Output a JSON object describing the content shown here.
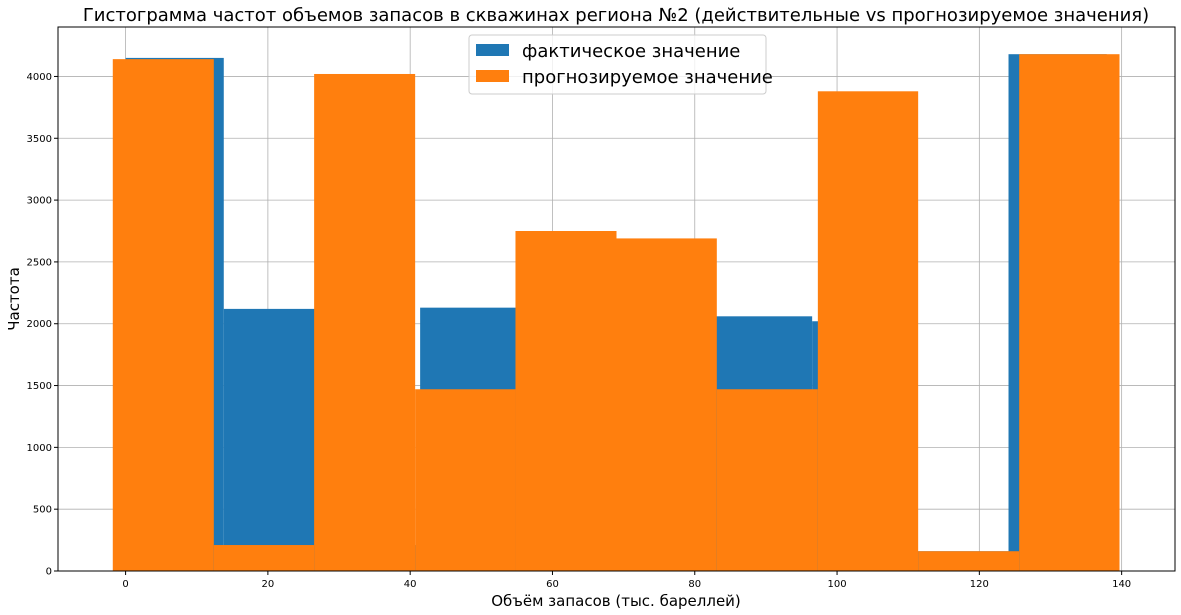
{
  "chart_data": {
    "type": "histogram",
    "title": "Гистограмма частот объемов запасов в скважинах региона №2 (действительные vs прогнозируемое значения)",
    "xlabel": "Объём запасов (тыс. бареллей)",
    "ylabel": "Частота",
    "xlim": [
      -9.5,
      147.5
    ],
    "ylim": [
      0,
      4400
    ],
    "x_ticks": [
      0,
      20,
      40,
      60,
      80,
      100,
      120,
      140
    ],
    "y_ticks": [
      0,
      500,
      1000,
      1500,
      2000,
      2500,
      3000,
      3500,
      4000
    ],
    "grid": true,
    "legend_position": "top-center",
    "series": [
      {
        "name": "фактическое значение",
        "color": "#1f77b4",
        "bins": [
          {
            "x0": 0.0,
            "x1": 13.8,
            "value": 4150
          },
          {
            "x0": 13.8,
            "x1": 27.6,
            "value": 2120
          },
          {
            "x0": 27.6,
            "x1": 41.4,
            "value": 210
          },
          {
            "x0": 41.4,
            "x1": 55.1,
            "value": 2130
          },
          {
            "x0": 55.1,
            "x1": 68.9,
            "value": 2100
          },
          {
            "x0": 68.9,
            "x1": 82.7,
            "value": 1470
          },
          {
            "x0": 82.7,
            "x1": 96.5,
            "value": 2060
          },
          {
            "x0": 96.5,
            "x1": 110.3,
            "value": 2020
          },
          {
            "x0": 110.3,
            "x1": 124.1,
            "value": 160
          },
          {
            "x0": 124.1,
            "x1": 137.9,
            "value": 4180
          }
        ]
      },
      {
        "name": "прогнозируемое значение",
        "color": "#ff7f0e",
        "bins": [
          {
            "x0": -1.8,
            "x1": 12.4,
            "value": 4140
          },
          {
            "x0": 12.4,
            "x1": 26.5,
            "value": 210
          },
          {
            "x0": 26.5,
            "x1": 40.7,
            "value": 4020
          },
          {
            "x0": 40.7,
            "x1": 54.8,
            "value": 1470
          },
          {
            "x0": 54.8,
            "x1": 69.0,
            "value": 2750
          },
          {
            "x0": 69.0,
            "x1": 83.1,
            "value": 2690
          },
          {
            "x0": 83.1,
            "x1": 97.3,
            "value": 1470
          },
          {
            "x0": 97.3,
            "x1": 111.4,
            "value": 3880
          },
          {
            "x0": 111.4,
            "x1": 125.6,
            "value": 160
          },
          {
            "x0": 125.6,
            "x1": 139.7,
            "value": 4180
          }
        ]
      }
    ]
  }
}
